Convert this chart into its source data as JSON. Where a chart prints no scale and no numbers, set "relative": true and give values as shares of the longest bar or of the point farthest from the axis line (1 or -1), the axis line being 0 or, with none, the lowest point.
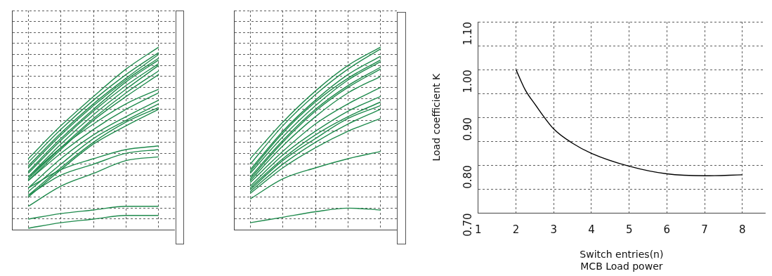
{
  "chart_data": [
    {
      "type": "line",
      "relative": true,
      "grid": true,
      "categories": [
        null,
        null,
        null,
        null,
        null
      ],
      "series": [
        {
          "color": "#1e8a4c",
          "values": [
            0.39,
            0.57,
            0.73,
            0.88,
            1.0
          ]
        },
        {
          "color": "#1e8a4c",
          "values": [
            0.37,
            0.55,
            0.71,
            0.85,
            0.97
          ]
        },
        {
          "color": "#1e8a4c",
          "values": [
            0.35,
            0.53,
            0.69,
            0.83,
            0.96
          ]
        },
        {
          "color": "#1e8a4c",
          "values": [
            0.34,
            0.52,
            0.68,
            0.82,
            0.94
          ]
        },
        {
          "color": "#1e8a4c",
          "values": [
            0.32,
            0.5,
            0.66,
            0.81,
            0.93
          ]
        },
        {
          "color": "#1e8a4c",
          "values": [
            0.31,
            0.49,
            0.65,
            0.79,
            0.91
          ]
        },
        {
          "color": "#1e8a4c",
          "values": [
            0.29,
            0.47,
            0.63,
            0.77,
            0.9
          ]
        },
        {
          "color": "#1e8a4c",
          "values": [
            0.28,
            0.45,
            0.61,
            0.75,
            0.87
          ]
        },
        {
          "color": "#1e8a4c",
          "values": [
            0.27,
            0.44,
            0.6,
            0.73,
            0.85
          ]
        },
        {
          "color": "#1e8a4c",
          "values": [
            0.29,
            0.45,
            0.58,
            0.69,
            0.77
          ]
        },
        {
          "color": "#1e8a4c",
          "values": [
            0.27,
            0.42,
            0.55,
            0.66,
            0.75
          ]
        },
        {
          "color": "#1e8a4c",
          "values": [
            0.23,
            0.39,
            0.52,
            0.62,
            0.71
          ]
        },
        {
          "color": "#1e8a4c",
          "values": [
            0.21,
            0.36,
            0.5,
            0.6,
            0.69
          ]
        },
        {
          "color": "#1e8a4c",
          "values": [
            0.19,
            0.34,
            0.48,
            0.59,
            0.67
          ]
        },
        {
          "color": "#1e8a4c",
          "values": [
            0.18,
            0.33,
            0.47,
            0.57,
            0.66
          ]
        },
        {
          "color": "#1e8a4c",
          "values": [
            0.23,
            0.33,
            0.39,
            0.44,
            0.46
          ]
        },
        {
          "color": "#1e8a4c",
          "values": [
            0.19,
            0.3,
            0.36,
            0.42,
            0.44
          ]
        },
        {
          "color": "#1e8a4c",
          "values": [
            0.13,
            0.24,
            0.31,
            0.38,
            0.4
          ]
        },
        {
          "color": "#1e8a4c",
          "values": [
            0.06,
            0.09,
            0.11,
            0.13,
            0.13
          ]
        },
        {
          "color": "#1e8a4c",
          "values": [
            0.01,
            0.04,
            0.06,
            0.08,
            0.08
          ]
        }
      ]
    },
    {
      "type": "line",
      "relative": true,
      "grid": true,
      "categories": [
        null,
        null,
        null,
        null,
        null
      ],
      "series": [
        {
          "color": "#1e8a4c",
          "values": [
            0.39,
            0.59,
            0.76,
            0.9,
            1.0
          ]
        },
        {
          "color": "#1e8a4c",
          "values": [
            0.36,
            0.57,
            0.74,
            0.88,
            0.99
          ]
        },
        {
          "color": "#1e8a4c",
          "values": [
            0.33,
            0.54,
            0.71,
            0.85,
            0.95
          ]
        },
        {
          "color": "#1e8a4c",
          "values": [
            0.32,
            0.53,
            0.7,
            0.83,
            0.93
          ]
        },
        {
          "color": "#1e8a4c",
          "values": [
            0.31,
            0.51,
            0.68,
            0.82,
            0.92
          ]
        },
        {
          "color": "#1e8a4c",
          "values": [
            0.29,
            0.49,
            0.66,
            0.79,
            0.89
          ]
        },
        {
          "color": "#1e8a4c",
          "values": [
            0.28,
            0.48,
            0.65,
            0.78,
            0.88
          ]
        },
        {
          "color": "#1e8a4c",
          "values": [
            0.27,
            0.46,
            0.62,
            0.75,
            0.84
          ]
        },
        {
          "color": "#1e8a4c",
          "values": [
            0.26,
            0.43,
            0.58,
            0.69,
            0.78
          ]
        },
        {
          "color": "#1e8a4c",
          "values": [
            0.24,
            0.41,
            0.54,
            0.65,
            0.73
          ]
        },
        {
          "color": "#1e8a4c",
          "values": [
            0.23,
            0.39,
            0.52,
            0.62,
            0.7
          ]
        },
        {
          "color": "#1e8a4c",
          "values": [
            0.22,
            0.38,
            0.5,
            0.61,
            0.68
          ]
        },
        {
          "color": "#1e8a4c",
          "values": [
            0.21,
            0.36,
            0.48,
            0.58,
            0.66
          ]
        },
        {
          "color": "#1e8a4c",
          "values": [
            0.2,
            0.34,
            0.45,
            0.54,
            0.61
          ]
        },
        {
          "color": "#1e8a4c",
          "values": [
            0.17,
            0.28,
            0.34,
            0.39,
            0.43
          ]
        },
        {
          "color": "#1e8a4c",
          "values": [
            0.04,
            0.07,
            0.1,
            0.12,
            0.11
          ]
        }
      ]
    },
    {
      "type": "line",
      "grid": true,
      "xlabel": "Switch entries(n)",
      "ylabel": "Load coefficient K",
      "annotations": [
        "MCB Load power"
      ],
      "x": [
        2,
        2.25,
        2.5,
        3,
        3.5,
        4,
        5,
        6,
        7,
        8
      ],
      "values": [
        1.0,
        0.957,
        0.928,
        0.876,
        0.846,
        0.825,
        0.798,
        0.782,
        0.778,
        0.78
      ],
      "color": "#000000",
      "xlim": [
        1,
        8.6
      ],
      "xticks": [
        1,
        2,
        3,
        4,
        5,
        6,
        7,
        8
      ],
      "ylim": [
        0.7,
        1.1
      ],
      "yticks": [
        {
          "value": 0.7,
          "label": "0.70"
        },
        {
          "value": 0.75,
          "label": null
        },
        {
          "value": 0.8,
          "label": "0.80"
        },
        {
          "value": 0.85,
          "label": null
        },
        {
          "value": 0.9,
          "label": "0.90"
        },
        {
          "value": 0.95,
          "label": null
        },
        {
          "value": 1.0,
          "label": "1.00"
        },
        {
          "value": 1.05,
          "label": null
        },
        {
          "value": 1.1,
          "label": "1.10"
        }
      ]
    }
  ]
}
